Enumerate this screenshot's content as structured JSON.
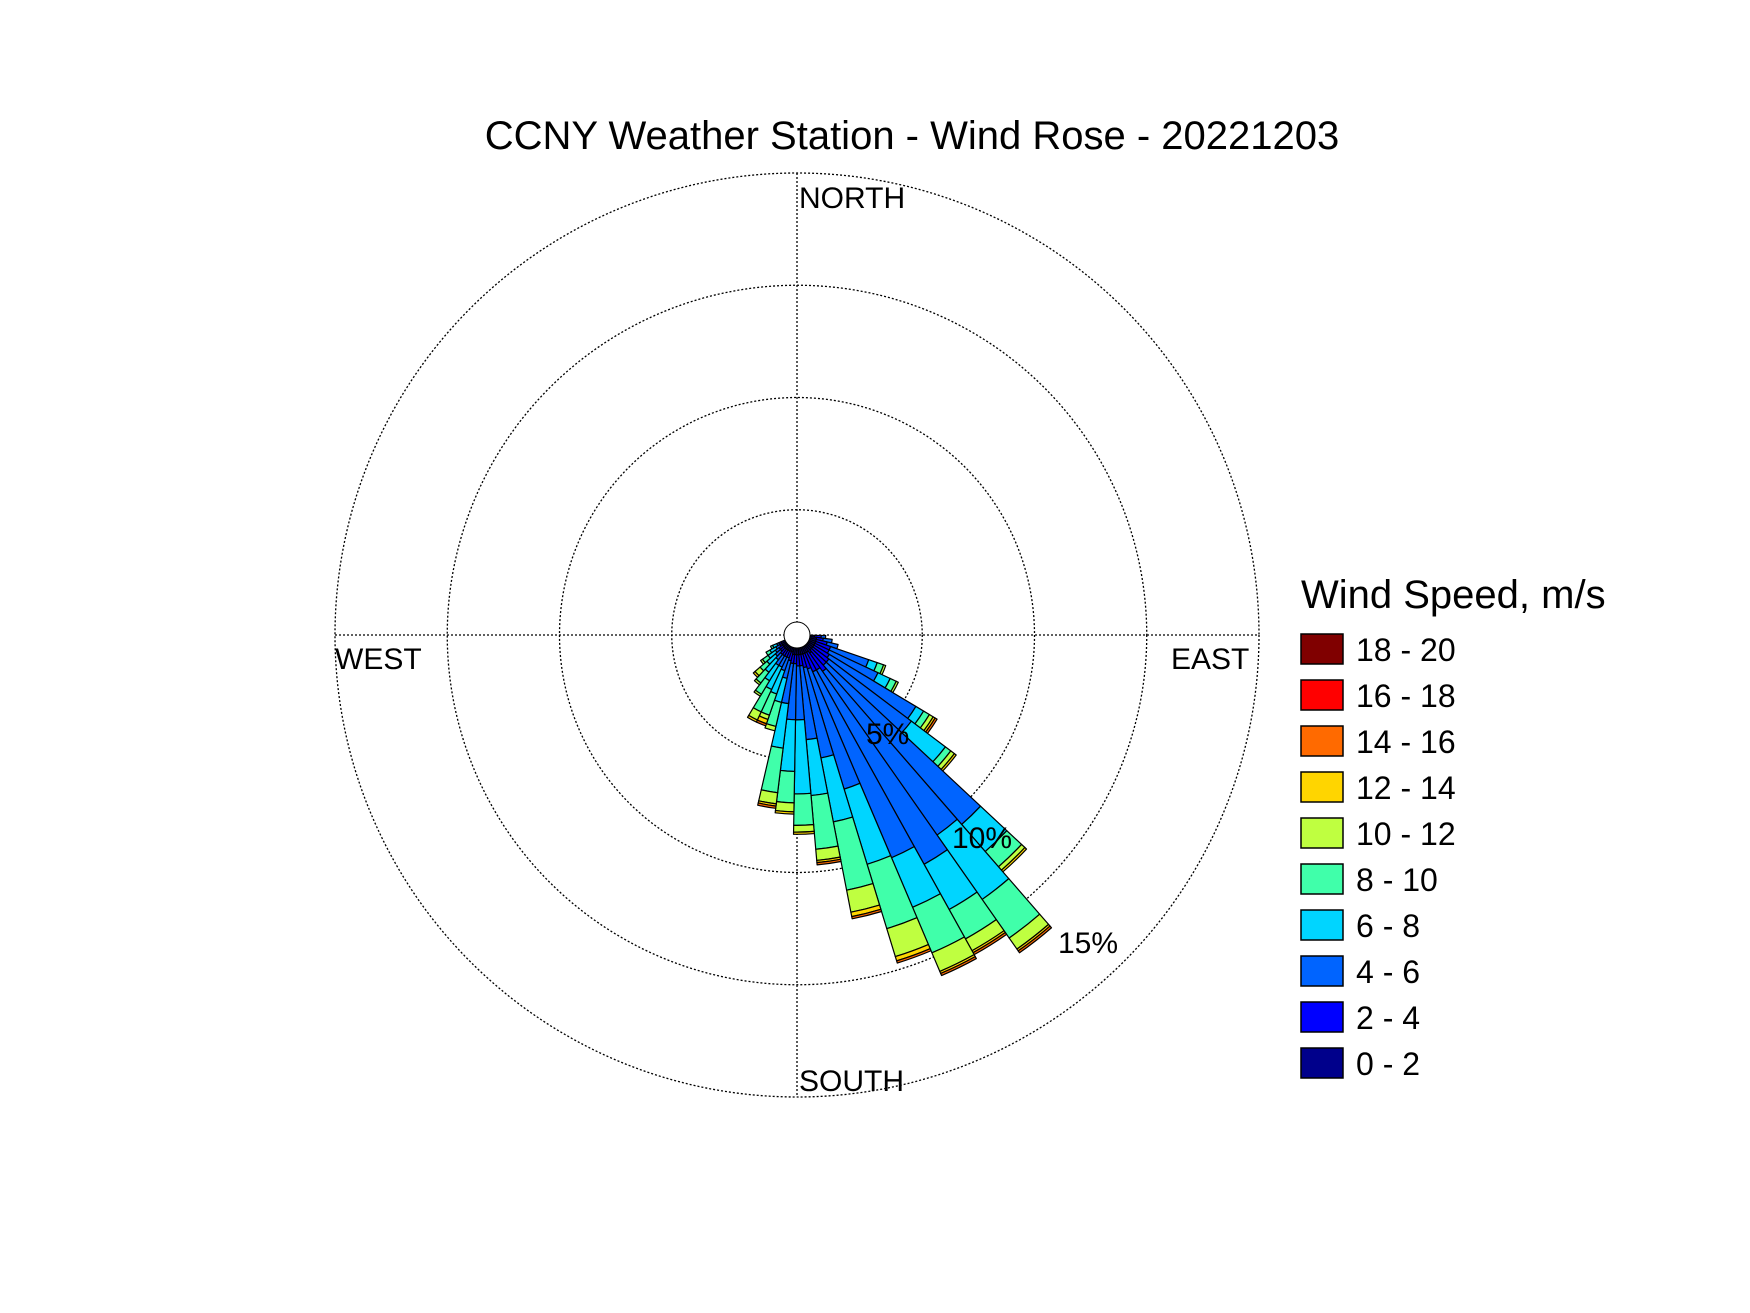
{
  "chart_data": {
    "type": "windrose",
    "title": "CCNY Weather Station - Wind Rose - 20221203",
    "directions": {
      "north": "NORTH",
      "south": "SOUTH",
      "east": "EAST",
      "west": "WEST"
    },
    "ring_labels": [
      "5%",
      "10%",
      "15%"
    ],
    "ring_values": [
      5,
      10,
      15
    ],
    "r_max_percent": 20,
    "legend": {
      "title": "Wind Speed, m/s",
      "bins": [
        "18 - 20",
        "16 - 18",
        "14 - 16",
        "12 - 14",
        "10 - 12",
        "8 - 10",
        "6 - 8",
        "4 - 6",
        "2 - 4",
        "0 - 2"
      ],
      "colors": [
        "#800000",
        "#ff0000",
        "#ff6a00",
        "#ffd500",
        "#bfff40",
        "#40ffaa",
        "#00d5ff",
        "#0064ff",
        "#0000ff",
        "#00008b"
      ]
    },
    "sector_width_deg": 6,
    "sectors": [
      {
        "dir": 94,
        "cum": [
          0.2,
          0.5,
          0.7
        ]
      },
      {
        "dir": 100,
        "cum": [
          0.3,
          0.6,
          1.0
        ]
      },
      {
        "dir": 106,
        "cum": [
          0.3,
          0.8,
          1.3
        ]
      },
      {
        "dir": 112,
        "cum": [
          0.3,
          1.0,
          2.8,
          3.2,
          3.5,
          3.6
        ]
      },
      {
        "dir": 118,
        "cum": [
          0.3,
          1.0,
          3.4,
          4.0,
          4.3,
          4.4
        ]
      },
      {
        "dir": 124,
        "cum": [
          0.3,
          1.1,
          5.6,
          6.0,
          6.3,
          6.5,
          6.6,
          6.7
        ]
      },
      {
        "dir": 130,
        "cum": [
          0.3,
          1.2,
          5.8,
          7.7,
          8.0,
          8.2,
          8.3
        ]
      },
      {
        "dir": 136,
        "cum": [
          0.3,
          1.2,
          10.6,
          12.2,
          13.1,
          13.3,
          13.4
        ]
      },
      {
        "dir": 142,
        "cum": [
          0.4,
          1.4,
          10.3,
          13.8,
          15.9,
          16.5,
          16.6,
          16.7
        ]
      },
      {
        "dir": 148,
        "cum": [
          0.3,
          1.2,
          11.1,
          13.4,
          14.9,
          15.5,
          15.6,
          15.7
        ]
      },
      {
        "dir": 154,
        "cum": [
          0.3,
          1.2,
          10.2,
          12.6,
          14.8,
          15.7,
          15.8,
          15.9
        ]
      },
      {
        "dir": 160,
        "cum": [
          0.3,
          1.0,
          6.6,
          10.1,
          13.1,
          14.4,
          14.6,
          14.7
        ]
      },
      {
        "dir": 166,
        "cum": [
          0.3,
          0.9,
          5.0,
          7.9,
          11.0,
          12.0,
          12.2,
          12.3
        ]
      },
      {
        "dir": 172,
        "cum": [
          0.3,
          0.8,
          4.1,
          6.6,
          9.0,
          9.5,
          9.6,
          9.7
        ]
      },
      {
        "dir": 178,
        "cum": [
          0.3,
          0.8,
          3.2,
          6.5,
          7.9,
          8.2,
          8.3
        ]
      },
      {
        "dir": 184,
        "cum": [
          0.3,
          0.7,
          3.2,
          5.5,
          6.9,
          7.3,
          7.4
        ]
      },
      {
        "dir": 190,
        "cum": [
          0.3,
          0.7,
          2.5,
          4.5,
          6.5,
          7.0,
          7.1,
          7.2
        ]
      },
      {
        "dir": 196,
        "cum": [
          0.2,
          0.6,
          1.4,
          2.5,
          3.6,
          3.8
        ]
      },
      {
        "dir": 202,
        "cum": [
          0.2,
          0.5,
          1.1,
          2.2,
          3.2,
          3.4,
          3.6,
          3.7
        ]
      },
      {
        "dir": 208,
        "cum": [
          0.2,
          0.5,
          1.0,
          2.1,
          3.2,
          3.6,
          3.7
        ]
      },
      {
        "dir": 214,
        "cum": [
          0.2,
          0.5,
          1.0,
          1.8,
          2.5,
          2.6
        ]
      },
      {
        "dir": 220,
        "cum": [
          0.2,
          0.5,
          0.8,
          1.5,
          2.1,
          2.2
        ]
      },
      {
        "dir": 226,
        "cum": [
          0.2,
          0.4,
          0.7,
          1.2,
          1.6,
          1.9,
          2.0
        ]
      },
      {
        "dir": 232,
        "cum": [
          0.2,
          0.4,
          0.6,
          1.0,
          1.3,
          1.4
        ]
      },
      {
        "dir": 238,
        "cum": [
          0.2,
          0.3,
          0.5,
          0.8,
          1.0
        ]
      },
      {
        "dir": 244,
        "cum": [
          0.2,
          0.3,
          0.4,
          0.6,
          0.7
        ]
      }
    ]
  }
}
